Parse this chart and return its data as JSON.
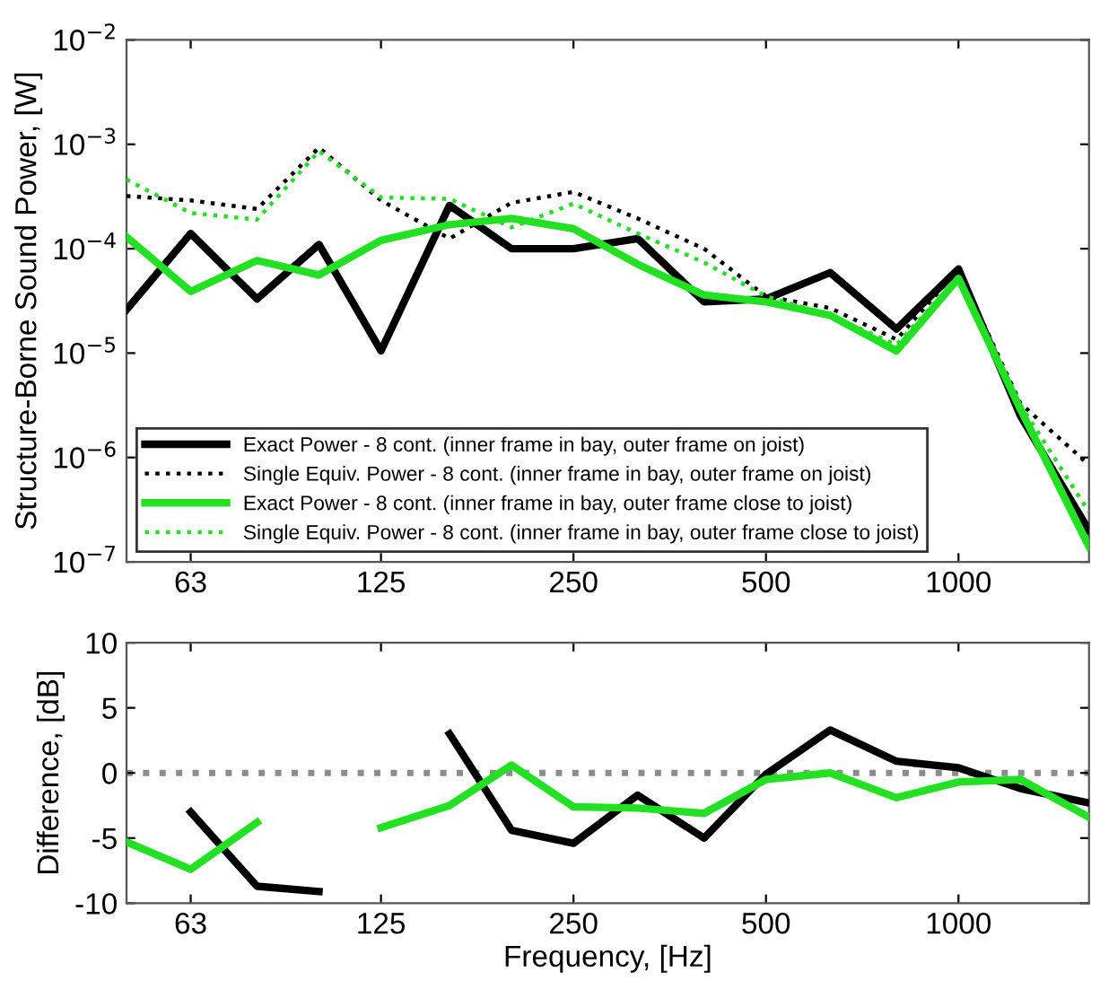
{
  "chart_data": [
    {
      "type": "line",
      "ylabel": "Structure-Borne Sound Power, [W]",
      "log": "xy",
      "x": [
        50,
        63,
        80,
        100,
        125,
        160,
        200,
        250,
        315,
        400,
        500,
        630,
        800,
        1000,
        1250,
        1600
      ],
      "xlim": [
        50,
        1600
      ],
      "xticks": [
        63,
        125,
        250,
        500,
        1000
      ],
      "ylim": [
        1e-07,
        0.01
      ],
      "yticks": [
        {
          "value": 1e-07,
          "label": "10$^{−7}$"
        },
        {
          "value": 1e-06,
          "label": "10$^{−6}$"
        },
        {
          "value": 1e-05,
          "label": "10$^{−5}$"
        },
        {
          "value": 0.0001,
          "label": "10$^{−4}$"
        },
        {
          "value": 0.001,
          "label": "10$^{−3}$"
        },
        {
          "value": 0.01,
          "label": "10$^{−2}$"
        }
      ],
      "grid": false,
      "legend": "bottom left",
      "series": [
        {
          "name": "Exact Power - 8 cont. (inner frame in bay, outer frame on joist)",
          "color": "#000000",
          "line_style": "solid",
          "values": [
            2.6e-05,
            0.00014,
            3.3e-05,
            0.00011,
            1.05e-05,
            0.00026,
            0.0001,
            0.0001,
            0.000125,
            3.1e-05,
            3.3e-05,
            5.9e-05,
            1.7e-05,
            6.4e-05,
            2.5e-06,
            2e-07
          ]
        },
        {
          "name": "Single Equiv. Power - 8 cont. (inner frame in bay, outer frame on joist)",
          "color": "#000000",
          "line_style": "dotted",
          "values": [
            0.00032,
            0.00029,
            0.00024,
            0.00093,
            0.00029,
            0.000125,
            0.000275,
            0.00035,
            0.000195,
            0.0001,
            3.5e-05,
            2.7e-05,
            1.35e-05,
            6.3e-05,
            3.3e-06,
            8.5e-07
          ]
        },
        {
          "name": "Exact Power - 8 cont. (inner frame in bay, outer frame close to joist)",
          "color": "#22e022",
          "line_style": "solid",
          "values": [
            0.00013,
            3.9e-05,
            7.7e-05,
            5.6e-05,
            0.00012,
            0.00017,
            0.000195,
            0.000155,
            7.1e-05,
            3.6e-05,
            3.1e-05,
            2.3e-05,
            1.05e-05,
            5.2e-05,
            2.9e-06,
            1.4e-07
          ]
        },
        {
          "name": "Single Equiv. Power - 8 cont. (inner frame in bay, outer frame close to joist)",
          "color": "#22e022",
          "line_style": "dotted",
          "values": [
            0.00046,
            0.00022,
            0.00019,
            0.00086,
            0.00031,
            0.0003,
            0.00016,
            0.00027,
            0.00014,
            7.4e-05,
            3.5e-05,
            2.3e-05,
            1.2e-05,
            5.4e-05,
            3.2e-06,
            3e-07
          ]
        }
      ]
    },
    {
      "type": "line",
      "xlabel": "Frequency, [Hz]",
      "ylabel": "Difference, [dB]",
      "log": "x",
      "x": [
        50,
        63,
        80,
        100,
        125,
        160,
        200,
        250,
        315,
        400,
        500,
        630,
        800,
        1000,
        1250,
        1600
      ],
      "xlim": [
        50,
        1600
      ],
      "xticks": [
        63,
        125,
        250,
        500,
        1000
      ],
      "ylim": [
        -10,
        10
      ],
      "yticks": [
        -10,
        -5,
        0,
        5,
        10
      ],
      "grid": false,
      "ref_lines": [
        {
          "axis": "y",
          "value": 0,
          "color": "#8c8c8c",
          "line_style": "dotted"
        }
      ],
      "series": [
        {
          "color": "#000000",
          "line_style": "solid",
          "values": [
            null,
            -3.0,
            -8.7,
            -9.1,
            null,
            3.0,
            -4.4,
            -5.4,
            -1.7,
            -5.0,
            -0.1,
            3.3,
            0.9,
            0.4,
            -1.2,
            -2.3
          ]
        },
        {
          "color": "#22e022",
          "line_style": "solid",
          "values": [
            -5.3,
            -7.4,
            -3.8,
            null,
            -4.2,
            -2.5,
            0.6,
            -2.6,
            -2.7,
            -3.1,
            -0.5,
            0.0,
            -1.9,
            -0.7,
            -0.5,
            -3.4
          ]
        }
      ]
    }
  ]
}
